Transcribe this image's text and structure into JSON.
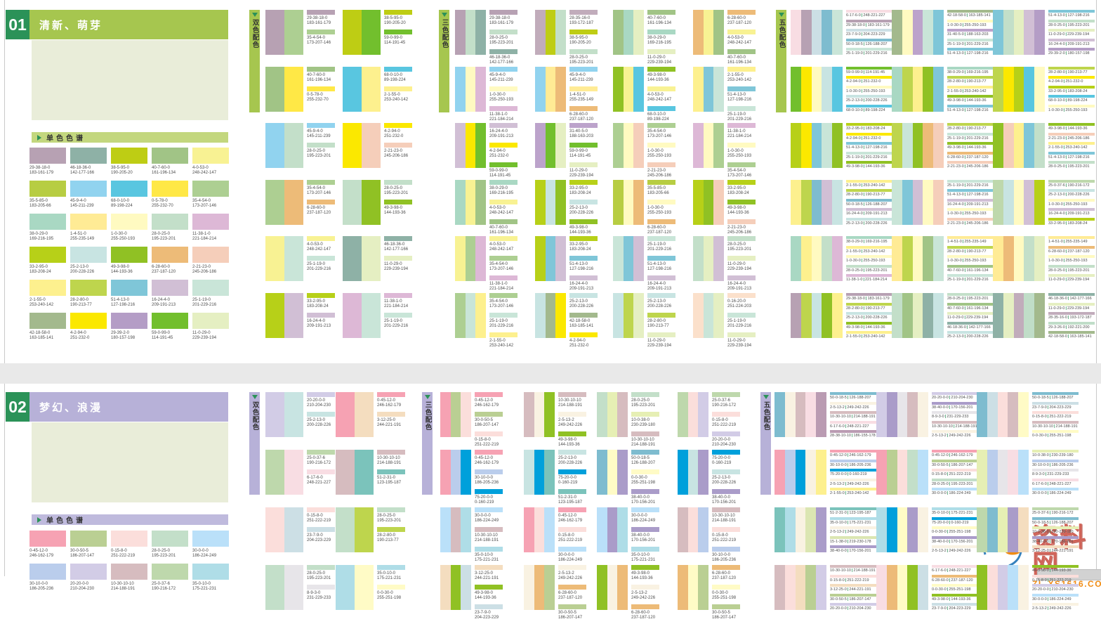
{
  "labels": {
    "mono": "单色色谱",
    "two": "双色配色",
    "three": "三色配色",
    "five": "五色配色"
  },
  "watermark": {
    "logo_x": "X",
    "logo_s": "S",
    "name": "资料网",
    "url": "ZL.XS1616.COM"
  },
  "theme": {
    "header_green": "#2b9258",
    "text_gray": "#4d4d4d",
    "separator_green": "#2b9258",
    "page_gap": "#e9e9e9"
  },
  "sections": [
    {
      "number": "01",
      "title": "清新、萌芽",
      "colors": {
        "accent": "#a6c64f",
        "mono_bar": "#c3d77e",
        "placeholder": "#e9edd9"
      },
      "mono": [
        "29-38-18-0|183-161-179",
        "46-18-36-0|142-177-166",
        "38-5-95-0|190-205-20",
        "40-7-60-0|161-196-134",
        "4-0-53-0|248-242-147",
        "35-5-85-0|183-205-66",
        "45-9-4-0|145-211-239",
        "68-0-10-0|89-198-224",
        "0-5-78-0|255-232-70",
        "35-4-54-0|173-207-146",
        "38-0-29-0|169-216-195",
        "1-4-51-0|255-235-149",
        "1-0-30-0|255-250-193",
        "28-0-25-0|195-223-201",
        "11-38-1-0|221-184-214",
        "33-2-95-0|183-208-24",
        "25-2-13-0|200-228-226",
        "49-3-98-0|144-193-36",
        "6-28-60-0|237-187-120",
        "2-21-23-0|245-206-186",
        "2-1-55-0|253-240-142",
        "28-2-80-0|190-213-77",
        "51-4-13-0|127-198-216",
        "16-24-4-0|209-191-213",
        "25-1-19-0|201-229-216",
        "42-18-58-0|163-185-141",
        "4-2-94-0|251-232-0",
        "29-39-2-0|180-157-198",
        "59-0-99-0|114-191-45",
        "11-0-29-0|229-239-194"
      ],
      "two": [
        [
          "29-38-18-0|183-161-179",
          "35-4-54-0|173-207-146"
        ],
        [
          "38-5-95-0|190-205-20",
          "59-0-99-0|114-191-45"
        ],
        [
          "40-7-60-0|161-196-134",
          "0-5-78-0|255-232-70"
        ],
        [
          "68-0-10-0|89-198-224",
          "2-1-55-0|253-240-142"
        ],
        [
          "45-9-4-0|145-211-239",
          "28-0-25-0|195-223-201"
        ],
        [
          "4-2-94-0|251-232-0",
          "2-21-23-0|245-206-186"
        ],
        [
          "35-4-54-0|173-207-146",
          "6-28-60-0|237-187-120"
        ],
        [
          "28-0-25-0|195-223-201",
          "49-3-98-0|144-193-36"
        ],
        [
          "4-0-53-0|248-242-147",
          "25-1-19-0|201-229-216"
        ],
        [
          "46-18-36-0|142-177-166",
          "11-0-29-0|229-239-194"
        ],
        [
          "33-2-95-0|183-208-24",
          "16-24-4-0|209-191-213"
        ],
        [
          "11-38-1-0|221-184-214",
          "25-1-19-0|201-229-216"
        ]
      ],
      "three": [
        [
          "29-38-18-0|183-161-179",
          "28-0-25-0|195-223-201",
          "46-18-36-0|142-177-166"
        ],
        [
          "28-35-16-0|193-172-187",
          "38-5-95-0|190-205-20",
          "28-0-25-0|195-223-201"
        ],
        [
          "40-7-60-0|161-196-134",
          "38-0-29-0|169-216-195",
          "11-0-29-0|229-239-194"
        ],
        [
          "6-28-60-0|237-187-120",
          "4-0-53-0|248-242-147",
          "40-7-60-0|161-196-134"
        ],
        [
          "45-9-4-0|145-211-239",
          "1-0-30-0|255-250-193",
          "11-38-1-0|221-184-214"
        ],
        [
          "45-9-4-0|145-211-239",
          "1-4-51-0|255-235-149",
          "6-28-60-0|237-187-120"
        ],
        [
          "49-3-98-0|144-193-36",
          "4-0-53-0|248-242-147",
          "68-0-10-0|89-198-224"
        ],
        [
          "2-1-55-0|253-240-142",
          "51-4-13-0|127-198-216",
          "25-1-19-0|201-229-216"
        ],
        [
          "16-24-4-0|209-191-213",
          "4-2-94-0|251-232-0",
          "59-0-99-0|114-191-45"
        ],
        [
          "31-40-5-0|188-163-203",
          "59-0-99-0|114-191-45",
          "11-0-29-0|229-239-194"
        ],
        [
          "35-4-54-0|173-207-146",
          "1-0-30-0|255-250-193",
          "2-21-23-0|245-206-186"
        ],
        [
          "11-38-1-0|221-184-214",
          "1-0-30-0|255-250-193",
          "35-4-54-0|173-207-146"
        ],
        [
          "38-0-29-0|169-216-195",
          "4-0-53-0|248-242-147",
          "40-7-60-0|161-196-134"
        ],
        [
          "33-2-95-0|183-208-24",
          "25-2-13-0|200-228-226",
          "49-3-98-0|144-193-36"
        ],
        [
          "35-5-85-0|183-205-66",
          "1-0-30-0|255-250-193",
          "6-28-60-0|237-187-120"
        ],
        [
          "33-2-95-0|183-208-24",
          "49-3-98-0|144-193-36",
          "2-21-23-0|245-206-186"
        ],
        [
          "4-0-53-0|248-242-147",
          "35-4-54-0|173-207-146",
          "11-38-1-0|221-184-214"
        ],
        [
          "33-2-95-0|183-208-24",
          "51-4-13-0|127-198-216",
          "16-24-4-0|209-191-213"
        ],
        [
          "25-1-19-0|201-229-216",
          "51-4-13-0|127-198-216",
          "16-24-4-0|209-191-213"
        ],
        [
          "28-0-25-0|195-223-201",
          "11-0-29-0|229-239-194",
          "16-24-4-0|209-191-213"
        ],
        [
          "35-4-54-0|173-207-146",
          "25-1-19-0|201-229-216",
          "2-1-55-0|253-240-142"
        ],
        [
          "25-2-13-0|200-228-226",
          "42-18-58-0|163-185-141",
          "4-2-94-0|251-232-0"
        ],
        [
          "25-2-13-0|200-228-226",
          "28-2-80-0|190-213-77",
          "11-0-29-0|229-239-194"
        ],
        [
          "0-16-20-0|251-224-203",
          "25-1-19-0|201-229-216",
          "11-0-29-0|229-239-194"
        ]
      ],
      "five": [
        [
          "6-17-6-0|248-221-227",
          "29-38-18-0|183-161-179",
          "23-7-9-0|204-223-229",
          "50-0-18-5|126-188-207",
          "25-1-19-0|201-229-216"
        ],
        [
          "42-18-58-0|163-185-141",
          "1-0-30-0|255-250-193",
          "31-40-5-0|188-163-203",
          "25-1-19-0|201-229-216",
          "51-4-13-0|127-198-216"
        ],
        [
          "51-4-13-0|127-198-216",
          "28-0-25-0|195-223-201",
          "11-0-29-0|229-239-194",
          "16-24-4-0|209-191-213",
          "29-39-2-0|180-157-198"
        ],
        [
          "59-0-99-0|114-191-45",
          "4-2-94-0|251-232-0",
          "1-0-30-0|255-250-193",
          "25-2-13-0|200-228-226",
          "68-0-10-0|89-198-224"
        ],
        [
          "38-0-29-0|169-216-195",
          "28-2-80-0|190-213-77",
          "2-1-55-0|253-240-142",
          "49-3-98-0|144-193-36",
          "51-4-13-0|127-198-216"
        ],
        [
          "28-2-80-0|190-213-77",
          "4-2-94-0|251-232-0",
          "33-2-95-0|183-208-24",
          "68-0-10-0|89-198-224",
          "1-0-30-0|255-250-193"
        ],
        [
          "33-2-95-0|183-208-24",
          "4-2-94-0|251-232-0",
          "51-4-13-0|127-198-216",
          "25-1-19-0|201-229-216",
          "49-3-98-0|144-193-36"
        ],
        [
          "28-2-80-0|190-213-77",
          "25-1-19-0|201-229-216",
          "49-3-98-0|144-193-36",
          "6-28-60-0|237-187-120",
          "2-21-23-0|245-206-186"
        ],
        [
          "49-3-98-0|144-193-36",
          "2-21-23-0|245-206-186",
          "2-1-55-0|253-240-142",
          "51-4-13-0|127-198-216",
          "28-0-25-0|195-223-201"
        ],
        [
          "2-1-55-0|253-240-142",
          "28-2-80-0|190-213-77",
          "50-0-18-5|126-188-207",
          "16-24-4-0|209-191-213",
          "25-2-13-0|200-228-226"
        ],
        [
          "25-1-19-0|201-229-216",
          "51-4-13-0|127-198-216",
          "16-24-4-0|209-191-213",
          "1-0-30-0|255-250-193",
          "2-21-23-0|245-206-186"
        ],
        [
          "25-0-37-6|190-216-172",
          "25-2-13-0|200-228-226",
          "1-0-30-0|255-250-193",
          "16-24-4-0|209-191-213",
          "33-2-95-0|183-208-24"
        ],
        [
          "38-0-29-0|169-216-195",
          "2-1-55-0|253-240-142",
          "1-0-30-0|255-250-193",
          "28-0-25-0|195-223-201",
          "11-38-1-0|221-184-214"
        ],
        [
          "1-4-51-0|255-235-149",
          "28-2-80-0|190-213-77",
          "1-0-30-0|255-250-193",
          "40-7-60-0|161-196-134",
          "25-1-19-0|201-229-216"
        ],
        [
          "1-4-51-0|255-235-149",
          "6-28-60-0|237-187-120",
          "1-0-30-0|255-250-193",
          "28-0-25-0|195-223-201",
          "11-0-29-0|229-239-194"
        ],
        [
          "29-38-18-0|183-161-179",
          "28-2-80-0|190-213-77",
          "25-2-13-0|200-228-226",
          "49-3-98-0|144-193-36",
          "2-1-55-0|253-240-142"
        ],
        [
          "28-0-25-0|195-223-201",
          "40-7-60-0|161-196-134",
          "11-0-29-0|229-239-194",
          "46-18-36-0|142-177-166",
          "25-2-13-0|200-228-226"
        ],
        [
          "46-18-36-0|142-177-166",
          "11-0-29-0|229-239-194",
          "28-35-16-0|193-172-187",
          "29-3-26-0|192-221-200",
          "42-18-58-0|163-185-141"
        ]
      ]
    },
    {
      "number": "02",
      "title": "梦幻、浪漫",
      "colors": {
        "accent": "#b7b1d8",
        "mono_bar": "#bfbadd",
        "placeholder": "#e9edd9"
      },
      "mono": [
        "0-45-12-0|246-162-179",
        "30-0-50-5|186-207-147",
        "0-15-8-0|251-222-219",
        "28-0-25-0|195-223-201",
        "30-0-0-0|186-224-249",
        "30-10-0-0|186-205-236",
        "20-20-0-0|210-204-230",
        "10-30-10-10|214-188-191",
        "25-0-37-6|190-216-172",
        "35-0-10-0|175-221-231"
      ],
      "two": [
        [
          "20-20-0-0|210-204-230",
          "25-2-13-0|200-228-226"
        ],
        [
          "0-45-12-0|246-162-179",
          "3-12-25-0|244-221-191"
        ],
        [
          "25-0-37-6|190-216-172",
          "6-17-6-0|248-221-227"
        ],
        [
          "10-30-10-10|214-188-191",
          "51-2-31-0|123-195-187"
        ],
        [
          "0-15-8-0|251-222-219",
          "23-7-9-0|204-223-229"
        ],
        [
          "28-0-25-0|195-223-201",
          "28-2-80-0|190-213-77"
        ],
        [
          "28-0-25-0|195-223-201",
          "8-9-3-0|231-229-233"
        ],
        [
          "35-0-10-0|175-221-231",
          "0-0-30-0|255-251-198"
        ]
      ],
      "three": [
        [
          "0-45-12-0|246-162-179",
          "30-0-50-5|186-207-147",
          "0-15-8-0|251-222-219"
        ],
        [
          "10-30-10-10|214-188-191",
          "2-5-13-2|249-242-226",
          "49-3-98-0|144-193-36"
        ],
        [
          "28-0-25-0|195-223-201",
          "10-0-38-0|230-239-180",
          "10-30-10-10|214-188-191"
        ],
        [
          "25-0-37-6|190-216-172",
          "0-15-8-0|251-222-219",
          "20-20-0-0|210-204-230"
        ],
        [
          "0-45-12-0|246-162-179",
          "30-10-0-0|186-205-236",
          "75-20-0-0|0-160-219"
        ],
        [
          "25-2-13-0|200-228-226",
          "75-20-0-0|0-160-219",
          "51-2-31-0|123-195-187"
        ],
        [
          "50-0-18-5|126-188-207",
          "0-0-30-0|255-251-198",
          "38-40-0-0|170-156-201"
        ],
        [
          "75-20-0-0|0-160-219",
          "25-2-13-0|200-228-226",
          "38-40-0-0|170-156-201"
        ],
        [
          "30-0-0-0|186-224-249",
          "10-30-10-10|214-188-191",
          "35-0-10-0|175-221-231"
        ],
        [
          "0-45-12-0|246-162-179",
          "0-15-8-0|251-222-219",
          "30-0-0-0|186-224-249"
        ],
        [
          "30-0-0-0|186-224-249",
          "38-40-0-0|170-156-201",
          "35-0-10-0|175-221-231"
        ],
        [
          "10-30-10-10|214-188-191",
          "0-15-8-0|251-222-219",
          "30-10-0-0|186-205-236"
        ],
        [
          "3-12-25-0|244-221-191",
          "49-3-98-0|144-193-36",
          "23-7-9-0|204-223-229"
        ],
        [
          "2-5-13-2|249-242-226",
          "6-28-60-0|237-187-120",
          "30-0-50-5|186-207-147"
        ],
        [
          "49-3-98-0|144-193-36",
          "2-5-13-2|249-242-226",
          "6-28-60-0|237-187-120"
        ],
        [
          "6-28-60-0|237-187-120",
          "0-0-30-0|255-251-198",
          "30-0-50-5|186-207-147"
        ]
      ],
      "five": [
        [
          "50-0-18-5|126-188-207",
          "2-5-13-2|249-242-226",
          "10-30-10-10|214-188-191",
          "6-17-6-0|248-221-227",
          "28-38-10-10|186-155-178"
        ],
        [
          "20-20-0-0|210-204-230",
          "38-40-0-0|170-156-201",
          "8-9-3-0|231-229-233",
          "10-30-10-10|214-188-191",
          "2-5-13-2|249-242-226"
        ],
        [
          "50-0-18-5|126-188-207",
          "23-7-9-0|204-223-229",
          "0-15-8-0|251-222-219",
          "10-30-10-10|214-188-191",
          "0-0-30-0|255-251-198"
        ],
        [
          "0-45-12-0|246-162-179",
          "30-10-0-0|186-205-236",
          "75-20-0-0|0-160-219",
          "2-5-13-2|249-242-226",
          "2-1-55-0|253-240-142"
        ],
        [
          "0-45-12-0|246-162-179",
          "30-0-50-5|186-207-147",
          "0-15-8-0|251-222-219",
          "28-0-25-0|195-223-201",
          "30-0-0-0|186-224-249"
        ],
        [
          "10-0-38-0|230-239-180",
          "30-10-0-0|186-205-236",
          "8-9-3-0|231-229-233",
          "6-17-6-0|248-221-227",
          "30-0-0-0|186-224-249"
        ],
        [
          "51-2-31-0|123-195-187",
          "35-0-10-0|175-221-231",
          "2-5-13-2|249-242-226",
          "15-1-38-0|219-230-178",
          "38-40-0-0|170-156-201"
        ],
        [
          "35-0-10-0|175-221-231",
          "75-20-0-0|0-160-219",
          "0-0-30-0|255-251-198",
          "38-40-0-0|170-156-201",
          "2-5-13-2|249-242-226"
        ],
        [
          "25-0-37-6|190-216-172",
          "50-0-18-5|126-188-207",
          "10-0-38-0|230-239-180",
          "38-40-0-0|170-156-201",
          "3-12-25-0|244-221-191"
        ],
        [
          "10-30-10-10|214-188-191",
          "0-15-8-0|251-222-219",
          "3-12-25-0|244-221-191",
          "30-0-50-5|186-207-147",
          "20-20-0-0|210-204-230"
        ],
        [
          "6-17-6-0|248-221-227",
          "6-28-60-0|237-187-120",
          "0-0-30-0|255-251-198",
          "49-3-98-0|144-193-36",
          "23-7-9-0|204-223-229"
        ],
        [
          "49-3-98-0|144-193-36",
          "0-15-8-0|251-222-219",
          "20-20-0-0|210-204-230",
          "30-0-0-0|186-224-249",
          "2-5-13-2|249-242-226"
        ]
      ]
    }
  ]
}
